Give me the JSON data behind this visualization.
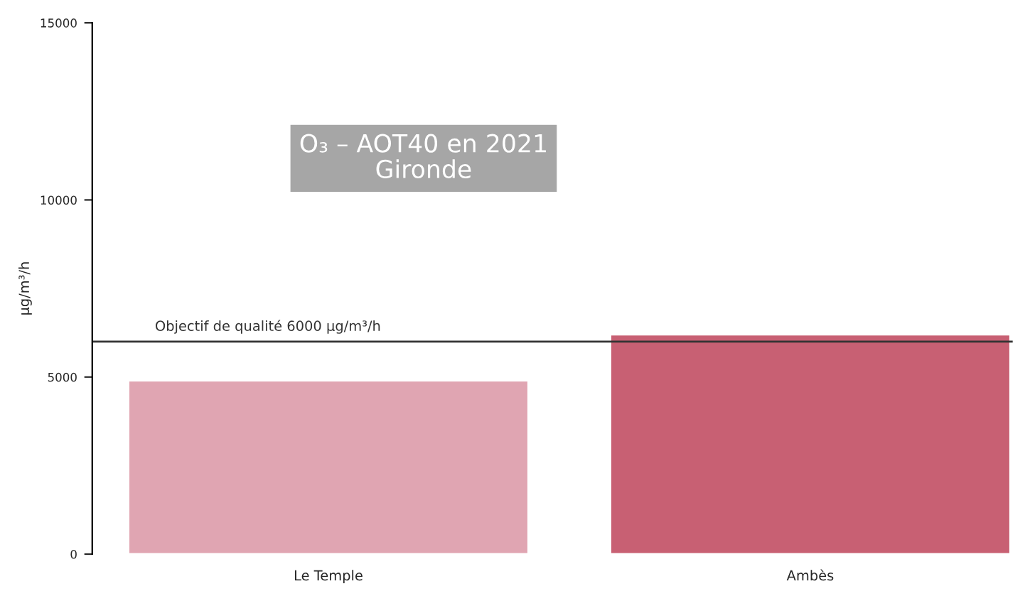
{
  "chart_data": {
    "type": "bar",
    "title": "O₃ – AOT40 en 2021\nGironde",
    "ylabel": "µg/m³/h",
    "categories": [
      "Le Temple",
      "Ambès"
    ],
    "values": [
      4900,
      6200
    ],
    "colors": [
      "#e0a5b2",
      "#c86073"
    ],
    "ylim": [
      0,
      15000
    ],
    "yticks": [
      0,
      5000,
      10000,
      15000
    ],
    "grid": false,
    "legend": false,
    "ref_lines": [
      {
        "axis": "y",
        "value": 6000,
        "label": "Objectif de qualité 6000 µg/m³/h",
        "color": "#333333",
        "line_style": "solid"
      }
    ]
  }
}
